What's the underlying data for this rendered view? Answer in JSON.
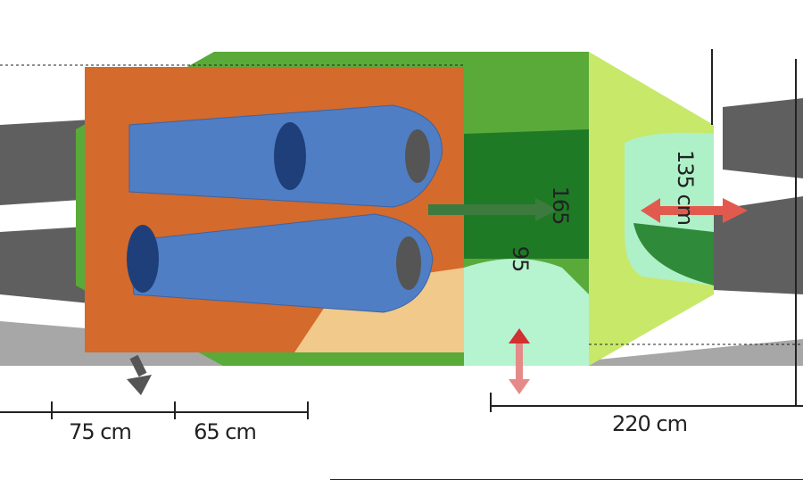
{
  "dimensions": {
    "width_left": "75 cm",
    "width_right": "65 cm",
    "length": "220 cm",
    "height_max": "135 cm",
    "height_mid": "165",
    "height_low": "95"
  }
}
